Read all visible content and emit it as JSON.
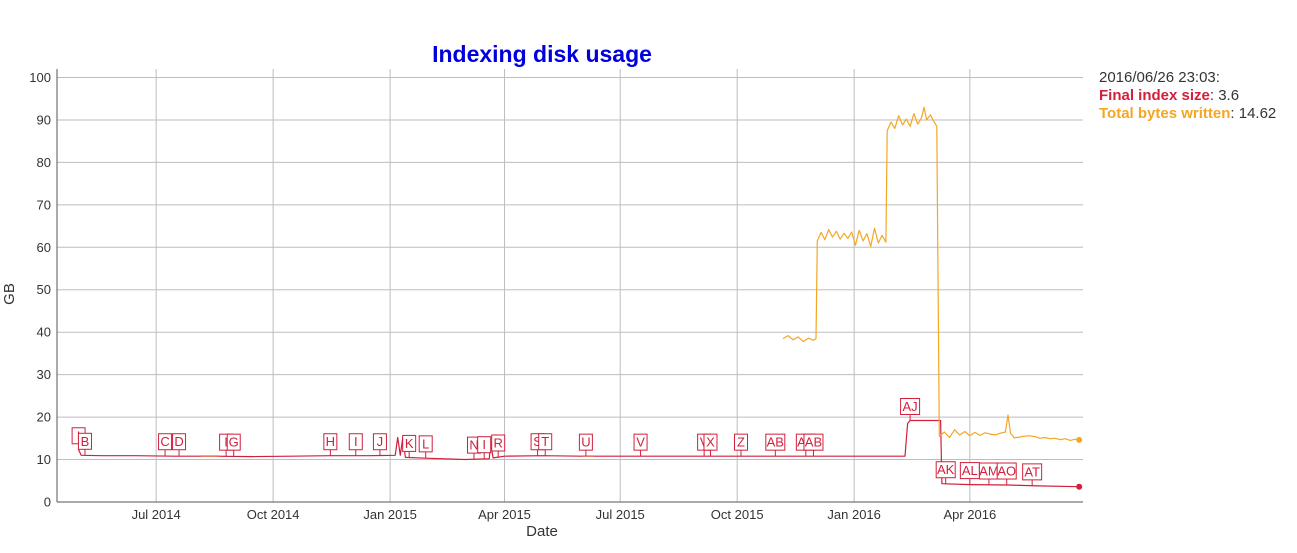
{
  "chart_data": {
    "type": "line",
    "title": "Indexing disk usage",
    "xlabel": "Date",
    "ylabel": "GB",
    "ylim": [
      0,
      102
    ],
    "xlim": [
      "2014-04-14",
      "2016-06-29"
    ],
    "yticks": [
      0,
      10,
      20,
      30,
      40,
      50,
      60,
      70,
      80,
      90,
      100
    ],
    "xticks": [
      {
        "date": "2014-07-01",
        "label": "Jul 2014"
      },
      {
        "date": "2014-10-01",
        "label": "Oct 2014"
      },
      {
        "date": "2015-01-01",
        "label": "Jan 2015"
      },
      {
        "date": "2015-04-01",
        "label": "Apr 2015"
      },
      {
        "date": "2015-07-01",
        "label": "Jul 2015"
      },
      {
        "date": "2015-10-01",
        "label": "Oct 2015"
      },
      {
        "date": "2016-01-01",
        "label": "Jan 2016"
      },
      {
        "date": "2016-04-01",
        "label": "Apr 2016"
      }
    ],
    "grid": true,
    "legend": "top-right",
    "series": [
      {
        "name": "Final index size",
        "color": "#d21f3c",
        "points": [
          [
            "2014-05-01",
            12.3
          ],
          [
            "2014-05-03",
            11.0
          ],
          [
            "2014-05-20",
            10.9
          ],
          [
            "2014-06-15",
            10.9
          ],
          [
            "2014-07-15",
            10.8
          ],
          [
            "2014-08-15",
            10.8
          ],
          [
            "2014-09-15",
            10.7
          ],
          [
            "2014-10-15",
            10.8
          ],
          [
            "2014-11-15",
            10.9
          ],
          [
            "2014-12-15",
            10.9
          ],
          [
            "2015-01-05",
            11.0
          ],
          [
            "2015-01-07",
            15.2
          ],
          [
            "2015-01-09",
            11.0
          ],
          [
            "2015-01-11",
            15.2
          ],
          [
            "2015-01-13",
            10.5
          ],
          [
            "2015-02-01",
            10.3
          ],
          [
            "2015-03-01",
            10.0
          ],
          [
            "2015-03-20",
            10.2
          ],
          [
            "2015-03-21",
            14.0
          ],
          [
            "2015-03-23",
            10.4
          ],
          [
            "2015-03-28",
            10.6
          ],
          [
            "2015-04-01",
            10.8
          ],
          [
            "2015-05-01",
            10.9
          ],
          [
            "2015-06-01",
            10.8
          ],
          [
            "2015-07-01",
            10.8
          ],
          [
            "2015-08-01",
            10.8
          ],
          [
            "2015-09-01",
            10.8
          ],
          [
            "2015-10-01",
            10.8
          ],
          [
            "2015-11-01",
            10.8
          ],
          [
            "2015-12-01",
            10.8
          ],
          [
            "2016-01-01",
            10.8
          ],
          [
            "2016-02-10",
            10.8
          ],
          [
            "2016-02-12",
            18.5
          ],
          [
            "2016-02-14",
            19.2
          ],
          [
            "2016-03-09",
            19.2
          ],
          [
            "2016-03-10",
            4.3
          ],
          [
            "2016-04-01",
            4.1
          ],
          [
            "2016-05-01",
            4.0
          ],
          [
            "2016-05-25",
            3.8
          ],
          [
            "2016-06-26",
            3.6
          ]
        ]
      },
      {
        "name": "Total bytes written",
        "color": "#f5a623",
        "points": [
          [
            "2014-08-05",
            10.9
          ],
          [
            "2014-08-20",
            10.9
          ],
          [
            "2014-09-01",
            null
          ],
          [
            "2015-06-01",
            10.9
          ],
          [
            "2015-06-10",
            10.9
          ],
          [
            "2015-06-20",
            null
          ],
          [
            "2015-11-06",
            38.5
          ],
          [
            "2015-11-10",
            39.2
          ],
          [
            "2015-11-14",
            38.2
          ],
          [
            "2015-11-18",
            38.9
          ],
          [
            "2015-11-22",
            37.8
          ],
          [
            "2015-11-26",
            38.6
          ],
          [
            "2015-11-30",
            38.1
          ],
          [
            "2015-12-02",
            38.5
          ],
          [
            "2015-12-03",
            61.5
          ],
          [
            "2015-12-06",
            63.5
          ],
          [
            "2015-12-09",
            61.8
          ],
          [
            "2015-12-12",
            64.2
          ],
          [
            "2015-12-15",
            62.4
          ],
          [
            "2015-12-18",
            63.8
          ],
          [
            "2015-12-21",
            61.9
          ],
          [
            "2015-12-24",
            63.3
          ],
          [
            "2015-12-27",
            62.1
          ],
          [
            "2015-12-30",
            63.6
          ],
          [
            "2016-01-02",
            60.5
          ],
          [
            "2016-01-05",
            64.0
          ],
          [
            "2016-01-08",
            61.5
          ],
          [
            "2016-01-11",
            63.2
          ],
          [
            "2016-01-14",
            60.2
          ],
          [
            "2016-01-17",
            64.5
          ],
          [
            "2016-01-20",
            61.0
          ],
          [
            "2016-01-23",
            62.8
          ],
          [
            "2016-01-26",
            61.2
          ],
          [
            "2016-01-27",
            87.5
          ],
          [
            "2016-01-30",
            89.5
          ],
          [
            "2016-02-02",
            88.0
          ],
          [
            "2016-02-05",
            91.0
          ],
          [
            "2016-02-08",
            88.8
          ],
          [
            "2016-02-11",
            90.2
          ],
          [
            "2016-02-14",
            88.5
          ],
          [
            "2016-02-17",
            91.5
          ],
          [
            "2016-02-20",
            89.0
          ],
          [
            "2016-02-23",
            90.5
          ],
          [
            "2016-02-25",
            93.0
          ],
          [
            "2016-02-27",
            90.0
          ],
          [
            "2016-03-01",
            91.2
          ],
          [
            "2016-03-04",
            89.5
          ],
          [
            "2016-03-06",
            88.5
          ],
          [
            "2016-03-08",
            15.5
          ],
          [
            "2016-03-12",
            16.5
          ],
          [
            "2016-03-16",
            15.2
          ],
          [
            "2016-03-20",
            17.0
          ],
          [
            "2016-03-24",
            15.8
          ],
          [
            "2016-03-28",
            16.6
          ],
          [
            "2016-04-01",
            15.6
          ],
          [
            "2016-04-05",
            16.4
          ],
          [
            "2016-04-09",
            15.7
          ],
          [
            "2016-04-13",
            16.3
          ],
          [
            "2016-04-17",
            16.0
          ],
          [
            "2016-04-21",
            15.8
          ],
          [
            "2016-04-25",
            16.2
          ],
          [
            "2016-04-29",
            16.5
          ],
          [
            "2016-05-01",
            20.5
          ],
          [
            "2016-05-03",
            16.2
          ],
          [
            "2016-05-06",
            15.1
          ],
          [
            "2016-05-10",
            15.3
          ],
          [
            "2016-05-14",
            15.5
          ],
          [
            "2016-05-18",
            15.6
          ],
          [
            "2016-05-22",
            15.4
          ],
          [
            "2016-05-26",
            15.0
          ],
          [
            "2016-05-30",
            15.2
          ],
          [
            "2016-06-03",
            14.9
          ],
          [
            "2016-06-07",
            15.0
          ],
          [
            "2016-06-11",
            14.7
          ],
          [
            "2016-06-15",
            14.9
          ],
          [
            "2016-06-19",
            14.5
          ],
          [
            "2016-06-23",
            14.8
          ],
          [
            "2016-06-26",
            14.62
          ]
        ]
      }
    ],
    "annotations": [
      {
        "label": "I",
        "date": "2014-05-01",
        "y": 12.3
      },
      {
        "label": "B",
        "date": "2014-05-06",
        "y": 11.0
      },
      {
        "label": "C",
        "date": "2014-07-08",
        "y": 10.9
      },
      {
        "label": "D",
        "date": "2014-07-19",
        "y": 10.9
      },
      {
        "label": "I",
        "date": "2014-08-25",
        "y": 10.8
      },
      {
        "label": "G",
        "date": "2014-08-31",
        "y": 10.8
      },
      {
        "label": "H",
        "date": "2014-11-15",
        "y": 10.9
      },
      {
        "label": "I",
        "date": "2014-12-05",
        "y": 10.9
      },
      {
        "label": "J",
        "date": "2014-12-24",
        "y": 10.9
      },
      {
        "label": "K",
        "date": "2015-01-16",
        "y": 10.5
      },
      {
        "label": "L",
        "date": "2015-01-29",
        "y": 10.4
      },
      {
        "label": "N",
        "date": "2015-03-08",
        "y": 10.1
      },
      {
        "label": "I",
        "date": "2015-03-16",
        "y": 10.2
      },
      {
        "label": "R",
        "date": "2015-03-27",
        "y": 10.6
      },
      {
        "label": "S",
        "date": "2015-04-27",
        "y": 10.9
      },
      {
        "label": "T",
        "date": "2015-05-03",
        "y": 10.9
      },
      {
        "label": "U",
        "date": "2015-06-04",
        "y": 10.8
      },
      {
        "label": "V",
        "date": "2015-07-17",
        "y": 10.8
      },
      {
        "label": "V",
        "date": "2015-09-05",
        "y": 10.8
      },
      {
        "label": "X",
        "date": "2015-09-10",
        "y": 10.8
      },
      {
        "label": "Z",
        "date": "2015-10-04",
        "y": 10.8
      },
      {
        "label": "AB",
        "date": "2015-10-31",
        "y": 10.8
      },
      {
        "label": "AA",
        "date": "2015-11-24",
        "y": 10.8
      },
      {
        "label": "AB",
        "date": "2015-11-30",
        "y": 10.8
      },
      {
        "label": "AJ",
        "date": "2016-02-14",
        "y": 19.2
      },
      {
        "label": "AK",
        "date": "2016-03-13",
        "y": 4.3
      },
      {
        "label": "AL",
        "date": "2016-04-01",
        "y": 4.1
      },
      {
        "label": "AM",
        "date": "2016-04-16",
        "y": 4.0
      },
      {
        "label": "AO",
        "date": "2016-04-30",
        "y": 4.0
      },
      {
        "label": "AT",
        "date": "2016-05-20",
        "y": 3.8
      }
    ]
  },
  "legend": {
    "timestamp": "2016/06/26 23:03:",
    "entries": [
      {
        "label": "Final index size",
        "value": ": 3.6",
        "color": "#d21f3c"
      },
      {
        "label": "Total bytes written",
        "value": ": 14.62",
        "color": "#f5a623"
      }
    ]
  }
}
